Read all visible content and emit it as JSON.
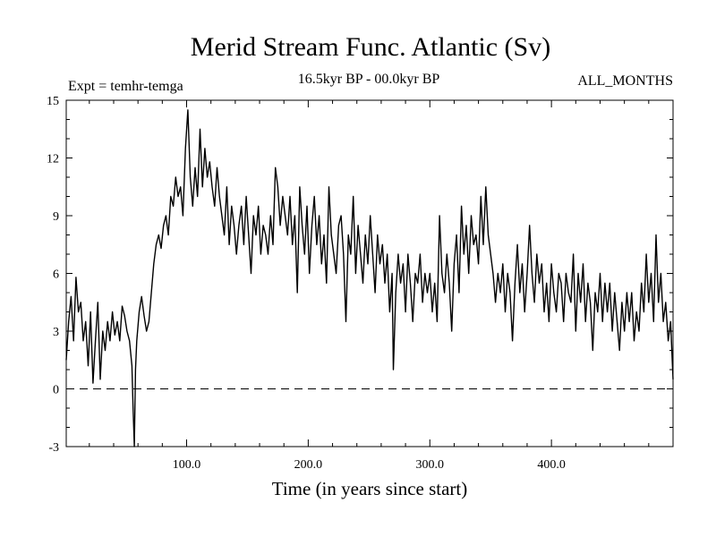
{
  "chart_data": {
    "type": "line",
    "title": "Merid Stream Func. Atlantic (Sv)",
    "experiment_label": "Expt = temhr-temga",
    "period_label": "16.5kyr BP - 00.0kyr BP",
    "months_label": "ALL_MONTHS",
    "xlabel": "Time (in years since start)",
    "ylabel": "",
    "xlim": [
      1,
      500
    ],
    "ylim": [
      -3,
      15
    ],
    "x_ticks": [
      100,
      200,
      300,
      400
    ],
    "x_tick_labels": [
      "100.0",
      "200.0",
      "300.0",
      "400.0"
    ],
    "y_ticks": [
      -3,
      0,
      3,
      6,
      9,
      12,
      15
    ],
    "y_tick_labels": [
      "-3",
      "0",
      "3",
      "6",
      "9",
      "12",
      "15"
    ],
    "reference_line": {
      "y": 0,
      "style": "dashed"
    },
    "series": [
      {
        "name": "Merid Stream Func. Atlantic",
        "anchors": [
          [
            1,
            1.5
          ],
          [
            3,
            3.5
          ],
          [
            5,
            4.8
          ],
          [
            7,
            2.5
          ],
          [
            9,
            5.8
          ],
          [
            11,
            4.0
          ],
          [
            13,
            4.5
          ],
          [
            15,
            2.5
          ],
          [
            17,
            3.5
          ],
          [
            19,
            1.2
          ],
          [
            21,
            4.0
          ],
          [
            23,
            0.3
          ],
          [
            25,
            2.5
          ],
          [
            27,
            4.5
          ],
          [
            29,
            0.5
          ],
          [
            31,
            3.0
          ],
          [
            33,
            2.0
          ],
          [
            35,
            3.5
          ],
          [
            37,
            2.5
          ],
          [
            39,
            4.0
          ],
          [
            41,
            2.8
          ],
          [
            43,
            3.5
          ],
          [
            45,
            2.5
          ],
          [
            47,
            4.3
          ],
          [
            49,
            3.8
          ],
          [
            51,
            3.0
          ],
          [
            53,
            2.5
          ],
          [
            55,
            1.2
          ],
          [
            56,
            -1.0
          ],
          [
            57,
            -3.0
          ],
          [
            58,
            1.0
          ],
          [
            59,
            2.5
          ],
          [
            61,
            4.0
          ],
          [
            63,
            4.8
          ],
          [
            65,
            3.8
          ],
          [
            67,
            3.0
          ],
          [
            69,
            3.5
          ],
          [
            71,
            5.0
          ],
          [
            73,
            6.5
          ],
          [
            75,
            7.5
          ],
          [
            77,
            8.0
          ],
          [
            79,
            7.3
          ],
          [
            81,
            8.5
          ],
          [
            83,
            9.0
          ],
          [
            85,
            8.0
          ],
          [
            87,
            10.0
          ],
          [
            89,
            9.5
          ],
          [
            91,
            11.0
          ],
          [
            93,
            10.0
          ],
          [
            95,
            10.5
          ],
          [
            97,
            9.0
          ],
          [
            99,
            12.5
          ],
          [
            101,
            14.5
          ],
          [
            103,
            11.0
          ],
          [
            105,
            9.5
          ],
          [
            107,
            11.5
          ],
          [
            109,
            10.0
          ],
          [
            111,
            13.5
          ],
          [
            113,
            10.5
          ],
          [
            115,
            12.5
          ],
          [
            117,
            11.0
          ],
          [
            119,
            11.8
          ],
          [
            121,
            10.5
          ],
          [
            123,
            9.5
          ],
          [
            125,
            11.5
          ],
          [
            127,
            10.0
          ],
          [
            129,
            9.0
          ],
          [
            131,
            8.0
          ],
          [
            133,
            10.5
          ],
          [
            135,
            7.5
          ],
          [
            137,
            9.5
          ],
          [
            139,
            8.5
          ],
          [
            141,
            7.0
          ],
          [
            143,
            8.5
          ],
          [
            145,
            9.5
          ],
          [
            147,
            7.5
          ],
          [
            149,
            10.0
          ],
          [
            151,
            8.0
          ],
          [
            153,
            6.0
          ],
          [
            155,
            9.0
          ],
          [
            157,
            8.0
          ],
          [
            159,
            9.5
          ],
          [
            161,
            7.0
          ],
          [
            163,
            8.5
          ],
          [
            165,
            8.0
          ],
          [
            167,
            7.0
          ],
          [
            169,
            9.0
          ],
          [
            171,
            7.5
          ],
          [
            173,
            11.5
          ],
          [
            175,
            10.5
          ],
          [
            177,
            8.5
          ],
          [
            179,
            10.0
          ],
          [
            181,
            9.0
          ],
          [
            183,
            8.0
          ],
          [
            185,
            10.0
          ],
          [
            187,
            7.5
          ],
          [
            189,
            9.0
          ],
          [
            191,
            5.0
          ],
          [
            193,
            10.5
          ],
          [
            195,
            8.5
          ],
          [
            197,
            7.0
          ],
          [
            199,
            9.5
          ],
          [
            201,
            6.0
          ],
          [
            203,
            8.5
          ],
          [
            205,
            10.0
          ],
          [
            207,
            7.5
          ],
          [
            209,
            9.0
          ],
          [
            211,
            6.5
          ],
          [
            213,
            8.0
          ],
          [
            215,
            5.5
          ],
          [
            217,
            10.5
          ],
          [
            219,
            8.0
          ],
          [
            221,
            7.0
          ],
          [
            223,
            6.0
          ],
          [
            225,
            8.5
          ],
          [
            227,
            9.0
          ],
          [
            229,
            7.0
          ],
          [
            231,
            3.5
          ],
          [
            233,
            8.0
          ],
          [
            235,
            7.0
          ],
          [
            237,
            10.0
          ],
          [
            239,
            6.0
          ],
          [
            241,
            8.5
          ],
          [
            243,
            7.0
          ],
          [
            245,
            5.5
          ],
          [
            247,
            8.0
          ],
          [
            249,
            6.5
          ],
          [
            251,
            9.0
          ],
          [
            253,
            7.0
          ],
          [
            255,
            5.0
          ],
          [
            257,
            8.0
          ],
          [
            259,
            6.5
          ],
          [
            261,
            7.5
          ],
          [
            263,
            5.5
          ],
          [
            265,
            7.0
          ],
          [
            267,
            4.0
          ],
          [
            269,
            6.0
          ],
          [
            270,
            1.0
          ],
          [
            272,
            5.0
          ],
          [
            274,
            7.0
          ],
          [
            276,
            5.5
          ],
          [
            278,
            6.5
          ],
          [
            280,
            4.0
          ],
          [
            282,
            7.0
          ],
          [
            284,
            5.5
          ],
          [
            286,
            3.5
          ],
          [
            288,
            6.0
          ],
          [
            290,
            5.5
          ],
          [
            292,
            7.0
          ],
          [
            294,
            4.5
          ],
          [
            296,
            6.0
          ],
          [
            298,
            5.0
          ],
          [
            300,
            6.0
          ],
          [
            302,
            4.0
          ],
          [
            304,
            5.5
          ],
          [
            306,
            3.5
          ],
          [
            308,
            9.0
          ],
          [
            310,
            6.0
          ],
          [
            312,
            5.0
          ],
          [
            314,
            7.0
          ],
          [
            316,
            5.5
          ],
          [
            318,
            3.0
          ],
          [
            320,
            6.5
          ],
          [
            322,
            8.0
          ],
          [
            324,
            5.0
          ],
          [
            326,
            9.5
          ],
          [
            328,
            7.0
          ],
          [
            330,
            8.5
          ],
          [
            332,
            6.0
          ],
          [
            334,
            9.0
          ],
          [
            336,
            7.5
          ],
          [
            338,
            8.0
          ],
          [
            340,
            6.5
          ],
          [
            342,
            10.0
          ],
          [
            344,
            7.5
          ],
          [
            346,
            10.5
          ],
          [
            348,
            8.0
          ],
          [
            350,
            7.0
          ],
          [
            352,
            6.0
          ],
          [
            354,
            4.5
          ],
          [
            356,
            6.0
          ],
          [
            358,
            5.0
          ],
          [
            360,
            6.5
          ],
          [
            362,
            4.0
          ],
          [
            364,
            6.0
          ],
          [
            366,
            5.0
          ],
          [
            368,
            2.5
          ],
          [
            370,
            5.5
          ],
          [
            372,
            7.5
          ],
          [
            374,
            5.0
          ],
          [
            376,
            6.5
          ],
          [
            378,
            4.0
          ],
          [
            380,
            6.0
          ],
          [
            382,
            8.5
          ],
          [
            384,
            6.0
          ],
          [
            386,
            4.5
          ],
          [
            388,
            7.0
          ],
          [
            390,
            5.5
          ],
          [
            392,
            6.5
          ],
          [
            394,
            4.0
          ],
          [
            396,
            5.5
          ],
          [
            398,
            3.5
          ],
          [
            400,
            6.5
          ],
          [
            402,
            5.0
          ],
          [
            404,
            4.0
          ],
          [
            406,
            6.0
          ],
          [
            408,
            5.5
          ],
          [
            410,
            3.5
          ],
          [
            412,
            6.0
          ],
          [
            414,
            5.0
          ],
          [
            416,
            4.5
          ],
          [
            418,
            7.0
          ],
          [
            420,
            3.0
          ],
          [
            422,
            6.0
          ],
          [
            424,
            4.5
          ],
          [
            426,
            6.5
          ],
          [
            428,
            3.5
          ],
          [
            430,
            5.5
          ],
          [
            432,
            4.5
          ],
          [
            434,
            2.0
          ],
          [
            436,
            5.0
          ],
          [
            438,
            4.0
          ],
          [
            440,
            6.0
          ],
          [
            442,
            3.5
          ],
          [
            444,
            5.5
          ],
          [
            446,
            4.0
          ],
          [
            448,
            5.5
          ],
          [
            450,
            3.0
          ],
          [
            452,
            5.0
          ],
          [
            454,
            3.5
          ],
          [
            456,
            2.0
          ],
          [
            458,
            4.5
          ],
          [
            460,
            3.0
          ],
          [
            462,
            5.0
          ],
          [
            464,
            3.5
          ],
          [
            466,
            5.0
          ],
          [
            468,
            2.5
          ],
          [
            470,
            4.0
          ],
          [
            472,
            3.0
          ],
          [
            474,
            5.5
          ],
          [
            476,
            4.0
          ],
          [
            478,
            7.0
          ],
          [
            480,
            4.5
          ],
          [
            482,
            6.0
          ],
          [
            484,
            3.5
          ],
          [
            486,
            8.0
          ],
          [
            488,
            4.5
          ],
          [
            490,
            6.0
          ],
          [
            492,
            3.5
          ],
          [
            494,
            4.5
          ],
          [
            496,
            2.5
          ],
          [
            498,
            3.5
          ],
          [
            500,
            0.5
          ]
        ]
      }
    ],
    "colors": {
      "line": "#000000",
      "axis": "#000000",
      "background": "#ffffff"
    }
  }
}
